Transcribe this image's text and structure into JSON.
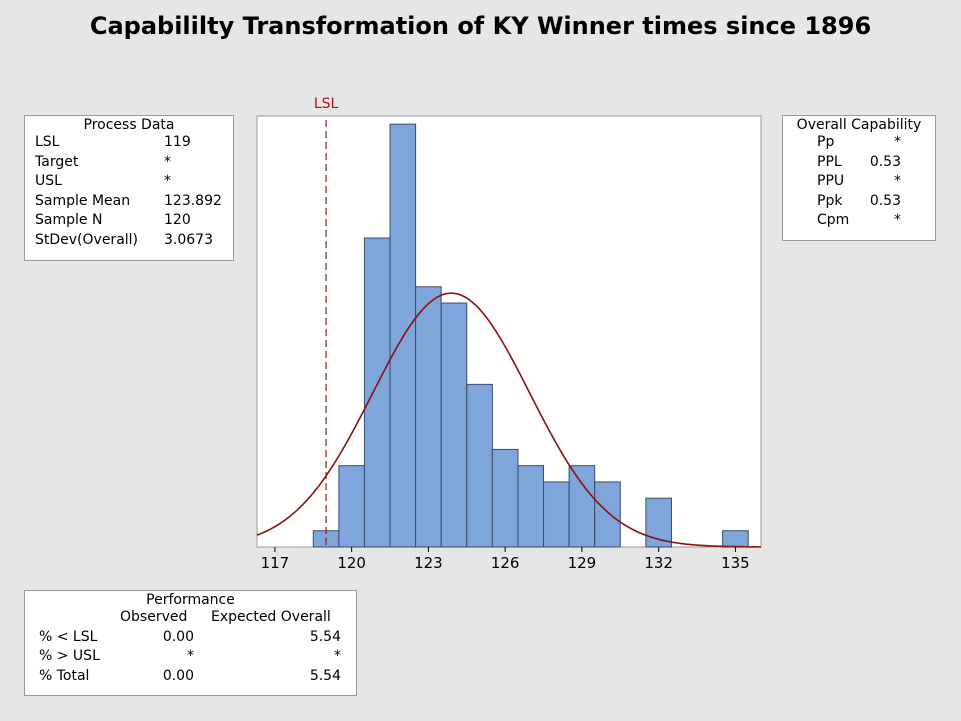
{
  "title": "Capabililty Transformation of KY Winner times since 1896",
  "process_data": {
    "title": "Process Data",
    "rows": [
      {
        "label": "LSL",
        "value": "119"
      },
      {
        "label": "Target",
        "value": "*"
      },
      {
        "label": "USL",
        "value": "*"
      },
      {
        "label": "Sample Mean",
        "value": "123.892"
      },
      {
        "label": "Sample N",
        "value": "120"
      },
      {
        "label": "StDev(Overall)",
        "value": "3.0673"
      }
    ]
  },
  "overall_capability": {
    "title": "Overall Capability",
    "rows": [
      {
        "label": "Pp",
        "value": "*"
      },
      {
        "label": "PPL",
        "value": "0.53"
      },
      {
        "label": "PPU",
        "value": "*"
      },
      {
        "label": "Ppk",
        "value": "0.53"
      },
      {
        "label": "Cpm",
        "value": "*"
      }
    ]
  },
  "performance": {
    "title": "Performance",
    "col_observed": "Observed",
    "col_expected": "Expected Overall",
    "rows": [
      {
        "label": "% < LSL",
        "observed": "0.00",
        "expected": "5.54"
      },
      {
        "label": "% > USL",
        "observed": "*",
        "expected": "*"
      },
      {
        "label": "% Total",
        "observed": "0.00",
        "expected": "5.54"
      }
    ]
  },
  "chart_data": {
    "type": "bar",
    "bin_width": 1,
    "bins": [
      {
        "start": 118.5,
        "end": 119.5,
        "count": 1
      },
      {
        "start": 119.5,
        "end": 120.5,
        "count": 5
      },
      {
        "start": 120.5,
        "end": 121.5,
        "count": 19
      },
      {
        "start": 121.5,
        "end": 122.5,
        "count": 26
      },
      {
        "start": 122.5,
        "end": 123.5,
        "count": 16
      },
      {
        "start": 123.5,
        "end": 124.5,
        "count": 15
      },
      {
        "start": 124.5,
        "end": 125.5,
        "count": 10
      },
      {
        "start": 125.5,
        "end": 126.5,
        "count": 6
      },
      {
        "start": 126.5,
        "end": 127.5,
        "count": 5
      },
      {
        "start": 127.5,
        "end": 128.5,
        "count": 4
      },
      {
        "start": 128.5,
        "end": 129.5,
        "count": 5
      },
      {
        "start": 129.5,
        "end": 130.5,
        "count": 4
      },
      {
        "start": 131.5,
        "end": 132.5,
        "count": 3
      },
      {
        "start": 134.5,
        "end": 135.5,
        "count": 1
      }
    ],
    "xticks": [
      "117",
      "120",
      "123",
      "126",
      "129",
      "132",
      "135"
    ],
    "xlim": [
      116.3,
      136.0
    ],
    "ylim": [
      0,
      26.5
    ],
    "lsl": {
      "label": "LSL",
      "value": 119
    },
    "normal_curve": {
      "mean": 123.892,
      "sd": 3.0673
    },
    "colors": {
      "bar_fill": "#7fa6db",
      "bar_stroke": "#3a4a66",
      "curve": "#8b1010",
      "lsl": "#a31515"
    },
    "grid": false
  }
}
